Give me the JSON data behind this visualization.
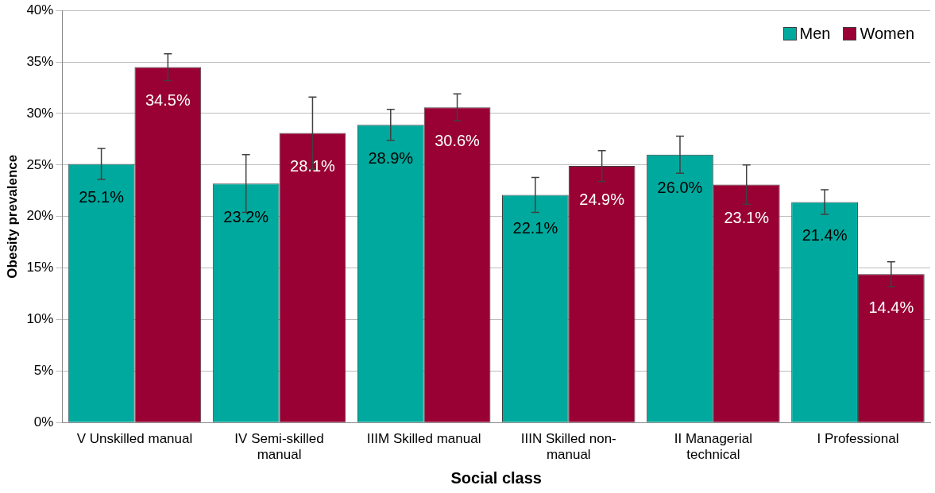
{
  "chart_data": {
    "type": "bar",
    "xlabel": "Social class",
    "ylabel": "Obesity prevalence",
    "categories": [
      "V Unskilled manual",
      "IV Semi-skilled manual",
      "IIIM Skilled manual",
      "IIIN Skilled non-manual",
      "II Managerial technical",
      "I Professional"
    ],
    "series": [
      {
        "name": "Men",
        "color": "#00a99d",
        "values": [
          25.1,
          23.2,
          28.9,
          22.1,
          26.0,
          21.4
        ],
        "value_labels": [
          "25.1%",
          "23.2%",
          "28.9%",
          "22.1%",
          "26.0%",
          "21.4%"
        ],
        "errors": [
          1.5,
          2.8,
          1.5,
          1.7,
          1.8,
          1.2
        ]
      },
      {
        "name": "Women",
        "color": "#990033",
        "values": [
          34.5,
          28.1,
          30.6,
          24.9,
          23.1,
          14.4
        ],
        "value_labels": [
          "34.5%",
          "28.1%",
          "30.6%",
          "24.9%",
          "23.1%",
          "14.4%"
        ],
        "errors": [
          1.3,
          3.5,
          1.3,
          1.5,
          1.9,
          1.2
        ]
      }
    ],
    "ylim": [
      0,
      40
    ],
    "yticks": [
      {
        "value": 0,
        "label": "0%"
      },
      {
        "value": 5,
        "label": "5%"
      },
      {
        "value": 10,
        "label": "10%"
      },
      {
        "value": 15,
        "label": "15%"
      },
      {
        "value": 20,
        "label": "20%"
      },
      {
        "value": 25,
        "label": "25%"
      },
      {
        "value": 30,
        "label": "30%"
      },
      {
        "value": 35,
        "label": "35%"
      },
      {
        "value": 40,
        "label": "40%"
      }
    ],
    "grid": "y",
    "legend": "top right"
  }
}
